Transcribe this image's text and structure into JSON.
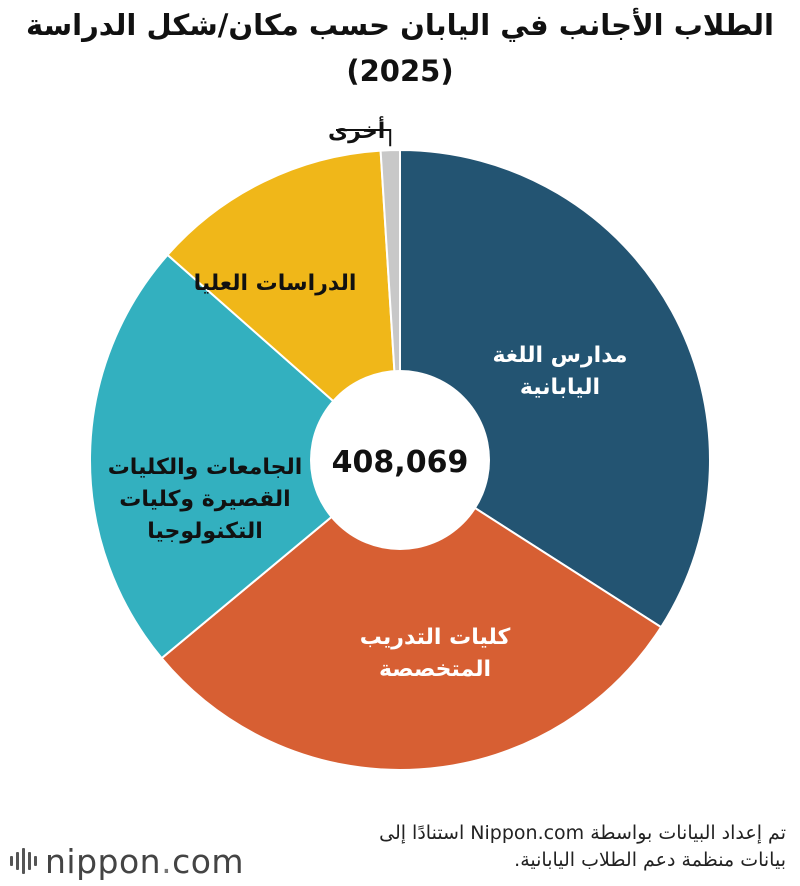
{
  "title": {
    "line1": "الطلاب الأجانب في اليابان حسب مكان/شكل الدراسة",
    "line2": "(2025)"
  },
  "chart_data": {
    "type": "pie",
    "style": "donut",
    "title": "الطلاب الأجانب في اليابان حسب مكان/شكل الدراسة (2025)",
    "total": 408069,
    "center_label": "408,069",
    "categories": [
      "مدارس اللغة اليابانية",
      "كليات التدريب المتخصصة",
      "الجامعات والكليات القصيرة وكليات التكنولوجيا",
      "الدراسات العليا",
      "أخرى"
    ],
    "values": [
      139000,
      122000,
      92000,
      51000,
      4069
    ],
    "colors": [
      "#235472",
      "#d75f33",
      "#33b0bf",
      "#f0b719",
      "#c8c8c8"
    ],
    "label_lines": [
      [
        "مدارس اللغة",
        "اليابانية"
      ],
      [
        "كليات التدريب",
        "المتخصصة"
      ],
      [
        "الجامعات والكليات",
        "القصيرة وكليات",
        "التكنولوجيا"
      ],
      [
        "الدراسات العليا"
      ],
      [
        "أخرى"
      ]
    ],
    "label_colors": [
      "#ffffff",
      "#ffffff",
      "#111111",
      "#111111",
      "#111111"
    ]
  },
  "source": {
    "line1": "تم إعداد البيانات بواسطة Nippon.com استنادًا إلى",
    "line2": "بيانات منظمة دعم الطلاب اليابانية."
  },
  "logo": {
    "name": "nippon",
    "dot": ".",
    "tld": "com"
  }
}
